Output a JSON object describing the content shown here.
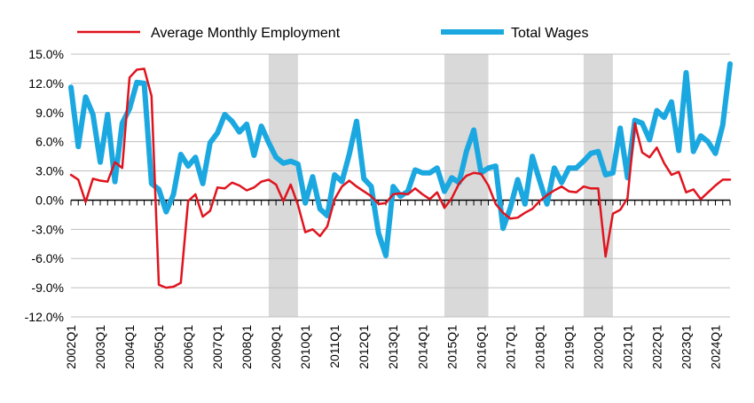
{
  "chart_data": {
    "type": "line",
    "title": "",
    "xlabel": "",
    "ylabel": "",
    "ylim": [
      -12,
      15
    ],
    "yticks": [
      -12,
      -9,
      -6,
      -3,
      0,
      3,
      6,
      9,
      12,
      15
    ],
    "ytick_labels": [
      "-12.0%",
      "-9.0%",
      "-6.0%",
      "-3.0%",
      "0.0%",
      "3.0%",
      "6.0%",
      "9.0%",
      "12.0%",
      "15.0%"
    ],
    "grid": "horizontal",
    "legend_position": "top",
    "x": [
      "2002Q1",
      "2002Q2",
      "2002Q3",
      "2002Q4",
      "2003Q1",
      "2003Q2",
      "2003Q3",
      "2003Q4",
      "2004Q1",
      "2004Q2",
      "2004Q3",
      "2004Q4",
      "2005Q1",
      "2005Q2",
      "2005Q3",
      "2005Q4",
      "2006Q1",
      "2006Q2",
      "2006Q3",
      "2006Q4",
      "2007Q1",
      "2007Q2",
      "2007Q3",
      "2007Q4",
      "2008Q1",
      "2008Q2",
      "2008Q3",
      "2008Q4",
      "2009Q1",
      "2009Q2",
      "2009Q3",
      "2009Q4",
      "2010Q1",
      "2010Q2",
      "2010Q3",
      "2010Q4",
      "2011Q1",
      "2011Q2",
      "2011Q3",
      "2011Q4",
      "2012Q1",
      "2012Q2",
      "2012Q3",
      "2012Q4",
      "2013Q1",
      "2013Q2",
      "2013Q3",
      "2013Q4",
      "2014Q1",
      "2014Q2",
      "2014Q3",
      "2014Q4",
      "2015Q1",
      "2015Q2",
      "2015Q3",
      "2015Q4",
      "2016Q1",
      "2016Q2",
      "2016Q3",
      "2016Q4",
      "2017Q1",
      "2017Q2",
      "2017Q3",
      "2017Q4",
      "2018Q1",
      "2018Q2",
      "2018Q3",
      "2018Q4",
      "2019Q1",
      "2019Q2",
      "2019Q3",
      "2019Q4",
      "2020Q1",
      "2020Q2",
      "2020Q3",
      "2020Q4",
      "2021Q1",
      "2021Q2",
      "2021Q3",
      "2021Q4",
      "2022Q1",
      "2022Q2",
      "2022Q3",
      "2022Q4",
      "2023Q1",
      "2023Q2",
      "2023Q3",
      "2023Q4",
      "2024Q1",
      "2024Q2",
      "2024Q3"
    ],
    "tick_labels": [
      "2002Q1",
      "2003Q1",
      "2004Q1",
      "2005Q1",
      "2006Q1",
      "2007Q1",
      "2008Q1",
      "2009Q1",
      "2010Q1",
      "2011Q1",
      "2012Q1",
      "2013Q1",
      "2014Q1",
      "2015Q1",
      "2016Q1",
      "2017Q1",
      "2018Q1",
      "2019Q1",
      "2020Q1",
      "2021Q1",
      "2022Q1",
      "2023Q1",
      "2024Q1"
    ],
    "shaded_periods": [
      {
        "start": "2008Q4",
        "end": "2009Q4"
      },
      {
        "start": "2014Q4",
        "end": "2016Q2"
      },
      {
        "start": "2019Q3",
        "end": "2020Q3"
      }
    ],
    "series": [
      {
        "name": "Average Monthly Employment",
        "color": "#e0141e",
        "values": [
          2.6,
          2.1,
          -0.2,
          2.2,
          2.0,
          1.9,
          3.9,
          3.3,
          12.6,
          13.4,
          13.5,
          10.7,
          -8.7,
          -9.0,
          -8.9,
          -8.5,
          -0.1,
          0.6,
          -1.7,
          -1.1,
          1.3,
          1.2,
          1.8,
          1.5,
          1.0,
          1.3,
          1.9,
          2.1,
          1.6,
          -0.1,
          1.6,
          -0.5,
          -3.3,
          -3.0,
          -3.7,
          -2.7,
          0.1,
          1.4,
          2.0,
          1.4,
          0.9,
          0.4,
          -0.4,
          -0.3,
          0.6,
          0.7,
          0.6,
          1.2,
          0.6,
          0.1,
          0.8,
          -0.8,
          0.2,
          1.7,
          2.5,
          2.8,
          2.7,
          1.5,
          -0.4,
          -1.3,
          -1.9,
          -1.8,
          -1.3,
          -0.9,
          -0.1,
          0.5,
          1.0,
          1.4,
          0.9,
          0.8,
          1.4,
          1.2,
          1.2,
          -5.8,
          -1.4,
          -1.0,
          0.2,
          7.9,
          4.9,
          4.4,
          5.4,
          3.8,
          2.6,
          2.9,
          0.8,
          1.1,
          0.1,
          0.8,
          1.5,
          2.1,
          2.1
        ]
      },
      {
        "name": "Total Wages",
        "color": "#1ba8e0",
        "values": [
          11.6,
          5.5,
          10.6,
          8.8,
          3.9,
          8.8,
          1.9,
          7.9,
          9.4,
          12.1,
          12.0,
          1.7,
          1.1,
          -1.2,
          0.6,
          4.7,
          3.5,
          4.4,
          1.7,
          5.9,
          6.9,
          8.8,
          8.1,
          7.0,
          7.8,
          4.6,
          7.6,
          5.9,
          4.4,
          3.8,
          4.0,
          3.7,
          -0.3,
          2.4,
          -0.9,
          -1.6,
          2.6,
          1.9,
          4.7,
          8.1,
          2.2,
          1.4,
          -3.4,
          -5.7,
          1.4,
          0.4,
          0.9,
          3.1,
          2.8,
          2.8,
          3.3,
          0.9,
          2.3,
          1.8,
          5.0,
          7.2,
          2.8,
          3.3,
          3.5,
          -2.9,
          -0.8,
          2.1,
          -0.4,
          4.5,
          2.0,
          -0.4,
          3.3,
          1.8,
          3.3,
          3.3,
          4.0,
          4.8,
          5.0,
          2.6,
          2.8,
          7.4,
          2.3,
          8.2,
          7.9,
          6.2,
          9.2,
          8.5,
          10.1,
          5.1,
          13.1,
          5.0,
          6.6,
          6.0,
          4.8,
          7.7,
          14.0
        ]
      }
    ]
  }
}
